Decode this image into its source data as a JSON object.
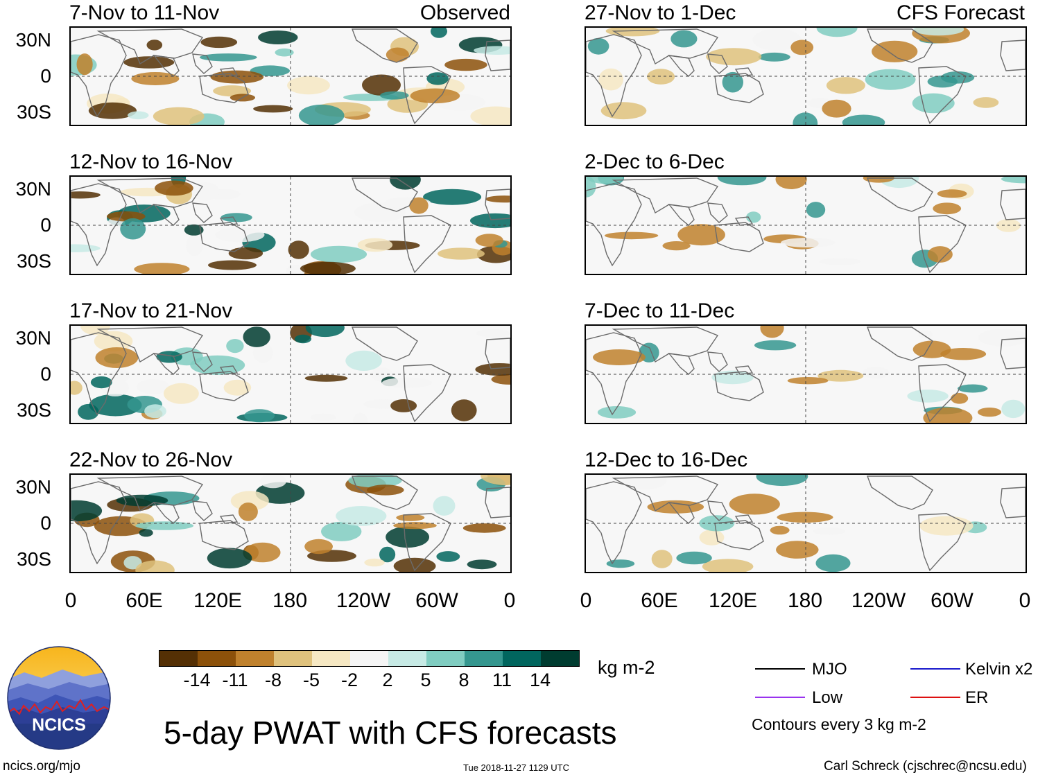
{
  "header": {
    "left_label": "Observed",
    "right_label": "CFS Forecast"
  },
  "lat_labels": [
    "30N",
    "0",
    "30S"
  ],
  "lon_labels": [
    "0",
    "60E",
    "120E",
    "180",
    "120W",
    "60W",
    "0"
  ],
  "panels": {
    "observed": [
      {
        "title": "7-Nov to 11-Nov"
      },
      {
        "title": "12-Nov to 16-Nov"
      },
      {
        "title": "17-Nov to 21-Nov"
      },
      {
        "title": "22-Nov to 26-Nov"
      }
    ],
    "forecast": [
      {
        "title": "27-Nov to 1-Dec"
      },
      {
        "title": "2-Dec to 6-Dec"
      },
      {
        "title": "7-Dec to 11-Dec"
      },
      {
        "title": "12-Dec to 16-Dec"
      }
    ]
  },
  "colorbar": {
    "labels": [
      "-14",
      "-11",
      "-8",
      "-5",
      "-2",
      "2",
      "5",
      "8",
      "11",
      "14"
    ],
    "colors": [
      "#543005",
      "#8c510a",
      "#bf812d",
      "#dfc27d",
      "#f6e8c3",
      "#f5f5f5",
      "#c7eae5",
      "#80cdc1",
      "#35978f",
      "#01665e",
      "#003c30"
    ],
    "units": "kg m-2"
  },
  "title": "5-day PWAT with CFS forecasts",
  "legend": {
    "items": [
      {
        "label": "MJO",
        "color": "#000000"
      },
      {
        "label": "Kelvin x2",
        "color": "#1a1acc"
      },
      {
        "label": "Low",
        "color": "#9933ee"
      },
      {
        "label": "ER",
        "color": "#dd1111"
      }
    ],
    "contour_note": "Contours every 3 kg m-2"
  },
  "logo": {
    "text": "NCICS"
  },
  "footer": {
    "url": "ncics.org/mjo",
    "timestamp": "Tue 2018-11-27 1129 UTC",
    "credit": "Carl Schreck (cjschrec@ncsu.edu)"
  }
}
